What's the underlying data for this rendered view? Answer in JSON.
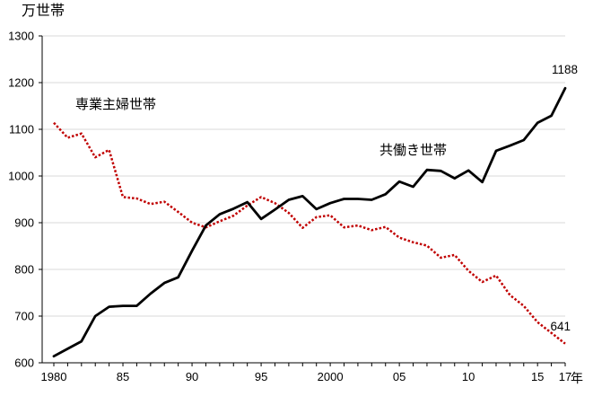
{
  "chart": {
    "y_axis_title": "万世帯",
    "x_axis_suffix": "年",
    "y_tick_labels": [
      "1300",
      "1200",
      "1100",
      "1000",
      "900",
      "800",
      "700",
      "600"
    ],
    "x_ticks": [
      {
        "label": "1980",
        "year": 1980
      },
      {
        "label": "85",
        "year": 1985
      },
      {
        "label": "90",
        "year": 1990
      },
      {
        "label": "95",
        "year": 1995
      },
      {
        "label": "2000",
        "year": 2000
      },
      {
        "label": "05",
        "year": 2005
      },
      {
        "label": "10",
        "year": 2010
      },
      {
        "label": "15",
        "year": 2015
      },
      {
        "label": "17",
        "year": 2017
      }
    ],
    "series_label_sengyo": "専業主婦世帯",
    "series_label_tomo": "共働き世帯",
    "annotation_tomo_end": "1188",
    "annotation_sengyo_end": "641",
    "colors": {
      "sengyo": "#c00000",
      "tomo": "#000000",
      "grid": "#d9d9d9",
      "axis": "#000000"
    }
  },
  "chart_data": {
    "type": "line",
    "title": "",
    "ylabel": "万世帯",
    "xlabel": "年",
    "ylim": [
      600,
      1300
    ],
    "y_gridline_step": 100,
    "grid": true,
    "legend_position": "inline-labels",
    "x": [
      1980,
      1981,
      1982,
      1983,
      1984,
      1985,
      1986,
      1987,
      1988,
      1989,
      1990,
      1991,
      1992,
      1993,
      1994,
      1995,
      1996,
      1997,
      1998,
      1999,
      2000,
      2001,
      2002,
      2003,
      2004,
      2005,
      2006,
      2007,
      2008,
      2009,
      2010,
      2011,
      2012,
      2013,
      2014,
      2015,
      2016,
      2017
    ],
    "series": [
      {
        "name": "専業主婦世帯",
        "color": "#c00000",
        "line_style": "dotted",
        "values": [
          1114,
          1082,
          1091,
          1040,
          1056,
          955,
          952,
          940,
          945,
          923,
          900,
          890,
          903,
          915,
          937,
          955,
          942,
          921,
          889,
          912,
          916,
          890,
          894,
          884,
          891,
          868,
          858,
          851,
          825,
          831,
          797,
          773,
          787,
          745,
          722,
          687,
          664,
          641
        ]
      },
      {
        "name": "共働き世帯",
        "color": "#000000",
        "line_style": "solid",
        "values": [
          614,
          630,
          646,
          700,
          720,
          722,
          722,
          748,
          771,
          783,
          840,
          894,
          918,
          930,
          944,
          908,
          928,
          949,
          957,
          929,
          942,
          951,
          951,
          949,
          961,
          988,
          977,
          1013,
          1011,
          995,
          1012,
          987,
          1054,
          1065,
          1077,
          1114,
          1129,
          1188
        ]
      }
    ],
    "end_value_labels": {
      "共働き世帯": 1188,
      "専業主婦世帯": 641
    }
  }
}
